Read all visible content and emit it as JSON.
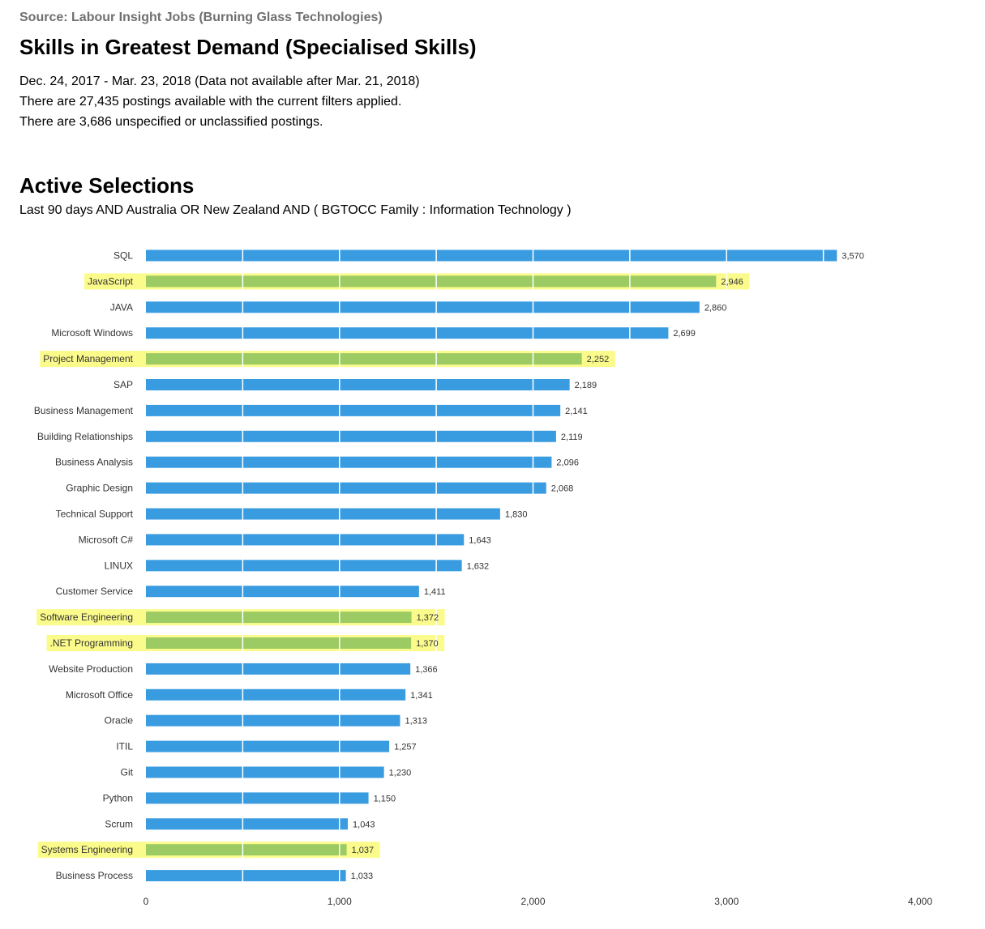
{
  "header": {
    "source": "Source: Labour Insight Jobs (Burning Glass Technologies)",
    "title": "Skills in Greatest Demand (Specialised Skills)",
    "date_range": "Dec.  24, 2017  - Mar.  23, 2018  (Data not available after  Mar.  21, 2018)",
    "postings": "There are 27,435 postings available with the current filters applied.",
    "unspecified": "There are 3,686 unspecified or unclassified postings."
  },
  "selections": {
    "heading": "Active Selections",
    "text": "Last 90 days AND Australia OR New Zealand AND ( BGTOCC Family : Information Technology )"
  },
  "colors": {
    "bar_default": "#3a9ce0",
    "bar_highlight": "#9ccb64",
    "highlight_background": "#fbfb8c",
    "label_text": "#333333",
    "value_text": "#333333"
  },
  "chart_data": {
    "type": "bar",
    "orientation": "horizontal",
    "categories": [
      "SQL",
      "JavaScript",
      "JAVA",
      "Microsoft Windows",
      "Project Management",
      "SAP",
      "Business Management",
      "Building Relationships",
      "Business Analysis",
      "Graphic Design",
      "Technical Support",
      "Microsoft C#",
      "LINUX",
      "Customer Service",
      "Software Engineering",
      ".NET Programming",
      "Website Production",
      "Microsoft Office",
      "Oracle",
      "ITIL",
      "Git",
      "Python",
      "Scrum",
      "Systems Engineering",
      "Business Process"
    ],
    "values": [
      3570,
      2946,
      2860,
      2699,
      2252,
      2189,
      2141,
      2119,
      2096,
      2068,
      1830,
      1643,
      1632,
      1411,
      1372,
      1370,
      1366,
      1341,
      1313,
      1257,
      1230,
      1150,
      1043,
      1037,
      1033
    ],
    "value_labels": [
      "3,570",
      "2,946",
      "2,860",
      "2,699",
      "2,252",
      "2,189",
      "2,141",
      "2,119",
      "2,096",
      "2,068",
      "1,830",
      "1,643",
      "1,632",
      "1,411",
      "1,372",
      "1,370",
      "1,366",
      "1,341",
      "1,313",
      "1,257",
      "1,230",
      "1,150",
      "1,043",
      "1,037",
      "1,033"
    ],
    "highlighted": [
      "JavaScript",
      "Project Management",
      "Software Engineering",
      ".NET Programming",
      "Systems Engineering"
    ],
    "xlim": [
      0,
      4000
    ],
    "xticks": [
      0,
      1000,
      2000,
      3000,
      4000
    ],
    "xtick_labels": [
      "0",
      "1,000",
      "2,000",
      "3,000",
      "4,000"
    ],
    "vertical_gridlines_in_bars": true,
    "legend": "none"
  }
}
